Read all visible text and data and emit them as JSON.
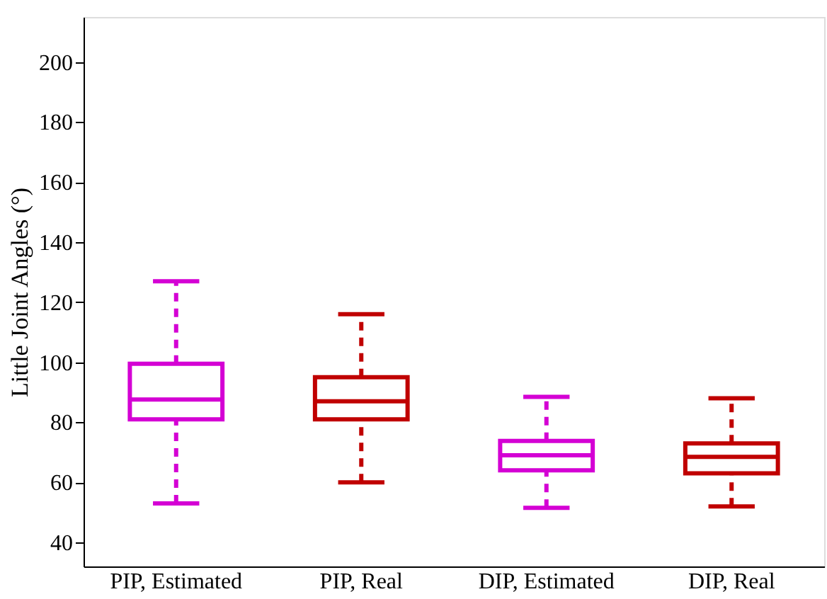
{
  "chart_data": {
    "type": "box",
    "ylabel": "Little Joint Angles (°)",
    "categories": [
      "PIP, Estimated",
      "PIP, Real",
      "DIP, Estimated",
      "DIP, Real"
    ],
    "boxes": [
      {
        "low": 53,
        "q1": 81,
        "median": 87.6,
        "q3": 99.5,
        "high": 127
      },
      {
        "low": 60,
        "q1": 81,
        "median": 87,
        "q3": 95,
        "high": 116
      },
      {
        "low": 51.5,
        "q1": 64,
        "median": 69,
        "q3": 73.8,
        "high": 88.5
      },
      {
        "low": 52,
        "q1": 63,
        "median": 68.5,
        "q3": 73,
        "high": 88
      }
    ],
    "colors": [
      "#d400d4",
      "#c00000",
      "#d400d4",
      "#c00000"
    ],
    "ylim": [
      32,
      215
    ],
    "yticks": [
      40,
      60,
      80,
      100,
      120,
      140,
      160,
      180,
      200
    ],
    "line_style": "dashed",
    "grid": false
  }
}
